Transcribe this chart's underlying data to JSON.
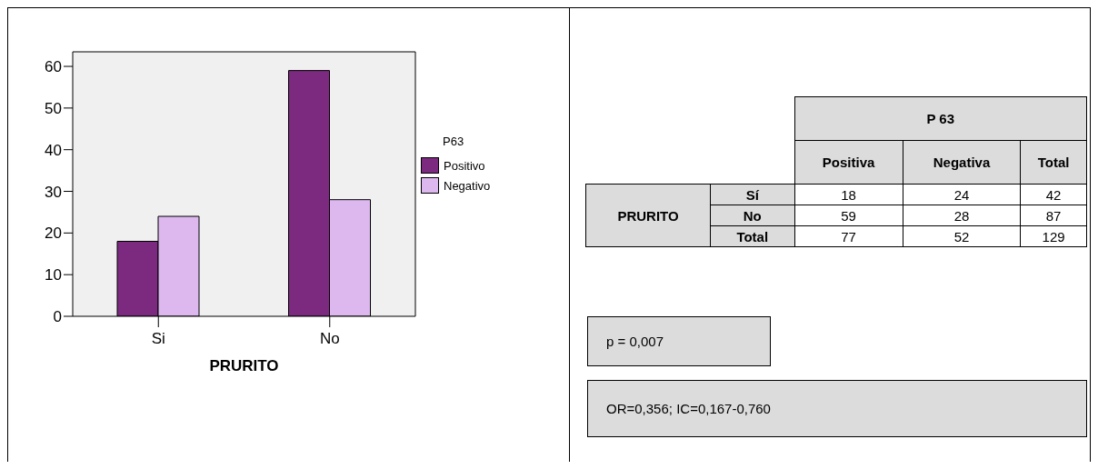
{
  "chart_data": [
    {
      "type": "bar",
      "xlabel": "PRURITO",
      "legend_title": "P63",
      "categories": [
        "Si",
        "No"
      ],
      "series": [
        {
          "name": "Positivo",
          "color": "#7b2a7f",
          "values": [
            18,
            59
          ]
        },
        {
          "name": "Negativo",
          "color": "#dcb8ee",
          "values": [
            24,
            28
          ]
        }
      ],
      "ylim": [
        0,
        63.5
      ],
      "yticks": [
        0,
        10,
        20,
        30,
        40,
        50,
        60
      ],
      "grid": false,
      "legend": "right"
    },
    {
      "type": "other",
      "title": "P 63",
      "ylabel": "PRURITO",
      "categories": [
        "Positiva",
        "Negativa",
        "Total"
      ],
      "y_categories": [
        "Sí",
        "No",
        "Total"
      ],
      "annotations": [
        "18",
        "24",
        "42",
        "59",
        "28",
        "87",
        "77",
        "52",
        "129",
        "p = 0,007",
        "OR=0,356; IC=0,167-0,760"
      ]
    }
  ]
}
